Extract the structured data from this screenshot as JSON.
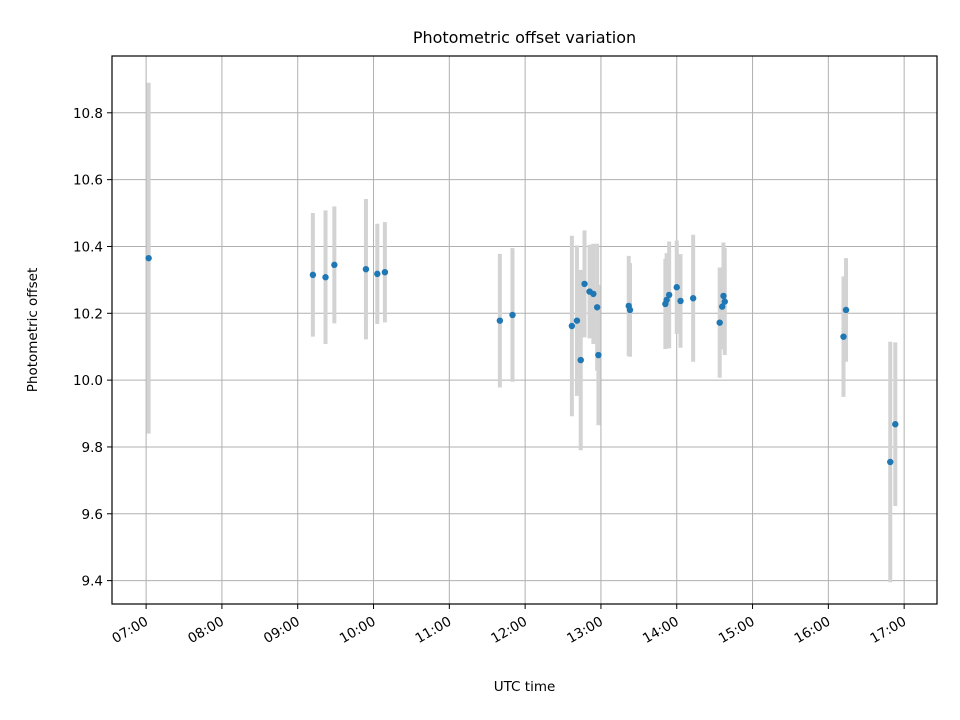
{
  "chart_data": {
    "type": "scatter",
    "title": "Photometric offset variation",
    "xlabel": "UTC time",
    "ylabel": "Photometric offset",
    "grid": true,
    "xlim": [
      "06:33",
      "17:26"
    ],
    "ylim": [
      9.33,
      10.97
    ],
    "xticks": [
      "07:00",
      "08:00",
      "09:00",
      "10:00",
      "11:00",
      "12:00",
      "13:00",
      "14:00",
      "15:00",
      "16:00",
      "17:00"
    ],
    "yticks": [
      9.4,
      9.6,
      9.8,
      10.0,
      10.2,
      10.4,
      10.6,
      10.8
    ],
    "colors": {
      "point": "#1f77b4",
      "errorbar": "#d3d3d3",
      "grid": "#b0b0b0"
    },
    "points": [
      {
        "t": "07:02",
        "y": 10.365,
        "err": 0.525
      },
      {
        "t": "09:12",
        "y": 10.315,
        "err": 0.185
      },
      {
        "t": "09:22",
        "y": 10.308,
        "err": 0.2
      },
      {
        "t": "09:29",
        "y": 10.345,
        "err": 0.175
      },
      {
        "t": "09:54",
        "y": 10.332,
        "err": 0.21
      },
      {
        "t": "10:03",
        "y": 10.318,
        "err": 0.15
      },
      {
        "t": "10:09",
        "y": 10.323,
        "err": 0.15
      },
      {
        "t": "11:40",
        "y": 10.178,
        "err": 0.2
      },
      {
        "t": "11:50",
        "y": 10.195,
        "err": 0.2
      },
      {
        "t": "12:37",
        "y": 10.162,
        "err": 0.27
      },
      {
        "t": "12:41",
        "y": 10.178,
        "err": 0.225
      },
      {
        "t": "12:44",
        "y": 10.06,
        "err": 0.27
      },
      {
        "t": "12:47",
        "y": 10.288,
        "err": 0.16
      },
      {
        "t": "12:51",
        "y": 10.265,
        "err": 0.14
      },
      {
        "t": "12:54",
        "y": 10.258,
        "err": 0.15
      },
      {
        "t": "12:57",
        "y": 10.218,
        "err": 0.19
      },
      {
        "t": "12:58",
        "y": 10.075,
        "err": 0.21
      },
      {
        "t": "13:22",
        "y": 10.222,
        "err": 0.15
      },
      {
        "t": "13:23",
        "y": 10.21,
        "err": 0.14
      },
      {
        "t": "13:51",
        "y": 10.228,
        "err": 0.135
      },
      {
        "t": "13:52",
        "y": 10.24,
        "err": 0.14
      },
      {
        "t": "13:54",
        "y": 10.255,
        "err": 0.16
      },
      {
        "t": "14:00",
        "y": 10.278,
        "err": 0.14
      },
      {
        "t": "14:03",
        "y": 10.237,
        "err": 0.14
      },
      {
        "t": "14:13",
        "y": 10.245,
        "err": 0.19
      },
      {
        "t": "14:34",
        "y": 10.172,
        "err": 0.165
      },
      {
        "t": "14:36",
        "y": 10.22,
        "err": 0.115
      },
      {
        "t": "14:37",
        "y": 10.252,
        "err": 0.16
      },
      {
        "t": "14:38",
        "y": 10.235,
        "err": 0.16
      },
      {
        "t": "16:12",
        "y": 10.13,
        "err": 0.18
      },
      {
        "t": "16:14",
        "y": 10.21,
        "err": 0.155
      },
      {
        "t": "16:49",
        "y": 9.755,
        "err": 0.36
      },
      {
        "t": "16:53",
        "y": 9.868,
        "err": 0.245
      }
    ]
  }
}
